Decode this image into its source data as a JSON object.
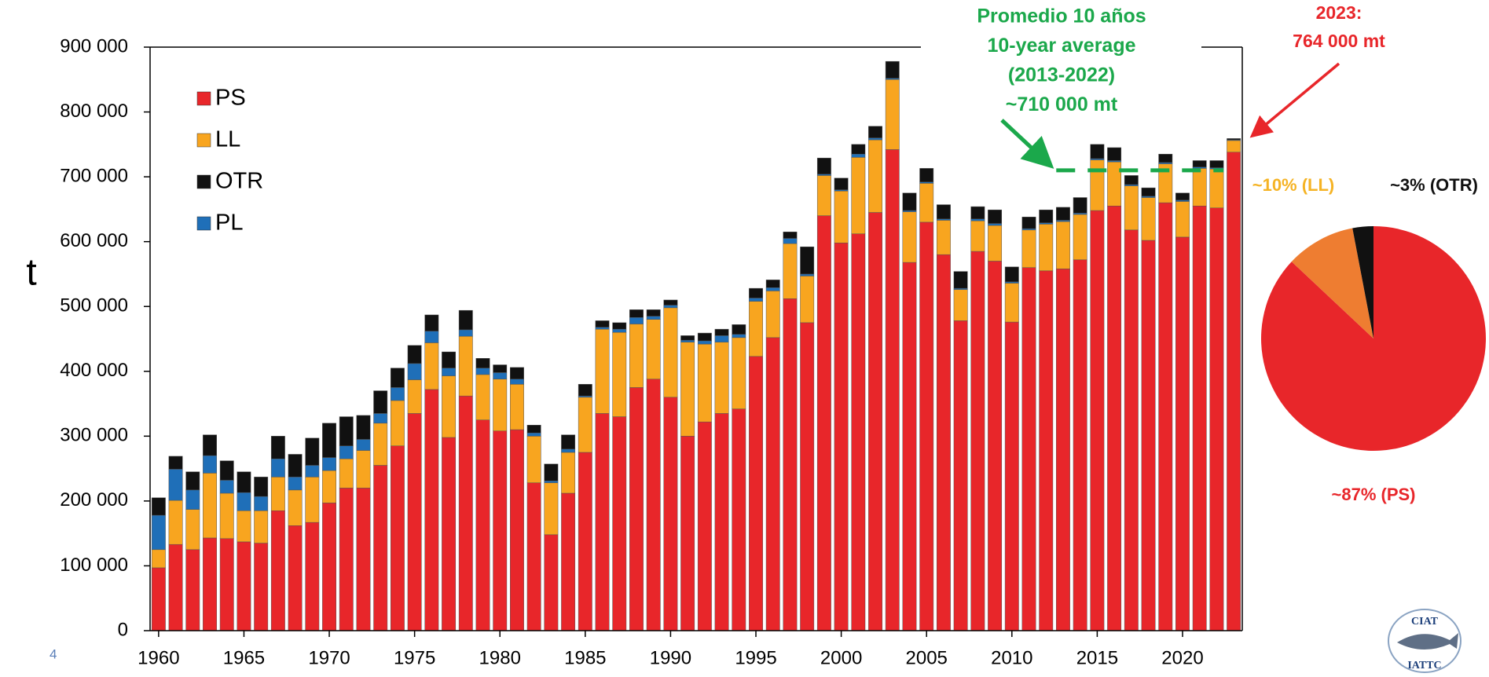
{
  "chart_data": [
    {
      "type": "bar",
      "stacked": true,
      "y_label": "t",
      "categories": [
        1960,
        null,
        null,
        null,
        null,
        1965,
        null,
        null,
        null,
        null,
        1970,
        null,
        null,
        null,
        null,
        1975,
        null,
        null,
        null,
        null,
        1980,
        null,
        null,
        null,
        null,
        1985,
        null,
        null,
        null,
        null,
        1990,
        null,
        null,
        null,
        null,
        1995,
        null,
        null,
        null,
        null,
        2000,
        null,
        null,
        null,
        null,
        2005,
        null,
        null,
        null,
        null,
        2010,
        null,
        null,
        null,
        null,
        2015,
        null,
        null,
        null,
        null,
        2020,
        null,
        null,
        null
      ],
      "series": [
        {
          "name": "PS",
          "color": "#e8262a",
          "values": [
            97000,
            133000,
            125000,
            143000,
            142000,
            137000,
            135000,
            185000,
            162000,
            167000,
            197000,
            220000,
            220000,
            255000,
            285000,
            335000,
            372000,
            298000,
            362000,
            325000,
            308000,
            310000,
            228000,
            148000,
            212000,
            275000,
            335000,
            330000,
            375000,
            388000,
            360000,
            300000,
            322000,
            335000,
            342000,
            423000,
            452000,
            512000,
            475000,
            640000,
            598000,
            612000,
            645000,
            742000,
            568000,
            630000,
            580000,
            478000,
            585000,
            570000,
            476000,
            560000,
            555000,
            558000,
            572000,
            648000,
            655000,
            618000,
            602000,
            660000,
            607000,
            655000,
            652000,
            738000
          ]
        },
        {
          "name": "LL",
          "color": "#f8a51f",
          "values": [
            28000,
            68000,
            62000,
            100000,
            70000,
            48000,
            50000,
            52000,
            55000,
            70000,
            50000,
            45000,
            58000,
            65000,
            70000,
            52000,
            72000,
            95000,
            92000,
            70000,
            80000,
            70000,
            72000,
            80000,
            63000,
            85000,
            130000,
            130000,
            98000,
            92000,
            138000,
            145000,
            120000,
            110000,
            110000,
            85000,
            72000,
            85000,
            72000,
            62000,
            80000,
            118000,
            112000,
            108000,
            78000,
            60000,
            53000,
            48000,
            47000,
            55000,
            60000,
            58000,
            72000,
            73000,
            70000,
            78000,
            68000,
            68000,
            66000,
            60000,
            55000,
            58000,
            60000,
            18000
          ]
        },
        {
          "name": "OTR",
          "color": "#111111",
          "values": [
            27000,
            20000,
            28000,
            32000,
            30000,
            32000,
            30000,
            35000,
            35000,
            42000,
            53000,
            45000,
            37000,
            35000,
            30000,
            28000,
            25000,
            25000,
            30000,
            15000,
            12000,
            18000,
            12000,
            26000,
            22000,
            18000,
            10000,
            10000,
            12000,
            10000,
            8000,
            7000,
            12000,
            10000,
            15000,
            15000,
            12000,
            10000,
            42000,
            25000,
            18000,
            15000,
            18000,
            26000,
            27000,
            21000,
            22000,
            26000,
            19000,
            21000,
            23000,
            18000,
            20000,
            20000,
            24000,
            22000,
            20000,
            14000,
            13000,
            13000,
            11000,
            10000,
            11000,
            2000
          ]
        },
        {
          "name": "PL",
          "color": "#1f6fb8",
          "values": [
            53000,
            48000,
            30000,
            27000,
            20000,
            28000,
            22000,
            28000,
            20000,
            18000,
            20000,
            20000,
            17000,
            15000,
            20000,
            25000,
            18000,
            12000,
            10000,
            10000,
            10000,
            8000,
            5000,
            3000,
            5000,
            2000,
            3000,
            5000,
            10000,
            5000,
            4000,
            3000,
            5000,
            10000,
            5000,
            5000,
            5000,
            8000,
            3000,
            2000,
            2000,
            5000,
            3000,
            2000,
            2000,
            2000,
            2000,
            2000,
            3000,
            3000,
            2000,
            2000,
            2000,
            2000,
            2000,
            2000,
            2000,
            2000,
            2000,
            2000,
            2000,
            2000,
            2000,
            1000
          ]
        }
      ],
      "ylim": [
        0,
        900000
      ],
      "yticks": [
        0,
        {
          "value": 100000,
          "label": "100 000"
        },
        {
          "value": 200000,
          "label": "200 000"
        },
        {
          "value": 300000,
          "label": "300 000"
        },
        {
          "value": 400000,
          "label": "400 000"
        },
        {
          "value": 500000,
          "label": "500 000"
        },
        {
          "value": 600000,
          "label": "600 000"
        },
        {
          "value": 700000,
          "label": "700 000"
        },
        {
          "value": 800000,
          "label": "800 000"
        },
        {
          "value": 900000,
          "label": "900 000"
        }
      ],
      "legend": "top-left",
      "average": {
        "value": 710000,
        "years": [
          2013,
          2022
        ],
        "color": "#1ba84b",
        "label": [
          "Promedio 10 años",
          "10-year average",
          "(2013-2022)",
          "~710 000 mt"
        ]
      },
      "callout": {
        "color": "#e8262a",
        "label": [
          "2023:",
          "764 000 mt"
        ]
      }
    },
    {
      "type": "pie",
      "values": [
        87,
        10,
        3
      ],
      "value_labels": [
        "~87% (PS)",
        "~10% (LL)",
        "~3% (OTR)"
      ],
      "colors": [
        "#e8262a",
        "#ee7d31",
        "#111111"
      ],
      "label_colors": [
        "#e8262a",
        "#f5b324",
        "#111111"
      ]
    }
  ],
  "page_number": "4",
  "logo": [
    "CIAT",
    "IATTC"
  ]
}
